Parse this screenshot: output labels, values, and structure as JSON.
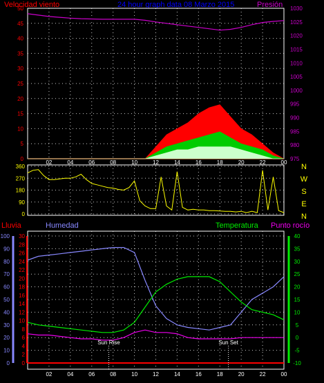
{
  "header": {
    "wind_label": "Velocidad viento",
    "title": "24 hour graph data  08 Marzo 2015",
    "pressure_label": "Presión",
    "colors": {
      "wind": "#ff0000",
      "title": "#0000ff",
      "pressure": "#cc00cc"
    }
  },
  "time_ticks": [
    "02",
    "04",
    "06",
    "08",
    "10",
    "12",
    "14",
    "16",
    "18",
    "20",
    "22",
    "00"
  ],
  "chart_data": [
    {
      "type": "area",
      "ylim_left": [
        0,
        50
      ],
      "ylim_right": [
        975,
        1030
      ],
      "yticks_left": [
        "0",
        "5",
        "10",
        "15",
        "20",
        "25",
        "30",
        "35",
        "40",
        "45",
        "50"
      ],
      "yticks_right": [
        "975",
        "980",
        "985",
        "990",
        "995",
        "1000",
        "1005",
        "1010",
        "1015",
        "1020",
        "1025",
        "1030"
      ],
      "x": [
        0,
        1,
        2,
        3,
        4,
        5,
        6,
        7,
        8,
        9,
        10,
        11,
        12,
        13,
        14,
        15,
        16,
        17,
        18,
        19,
        20,
        21,
        22,
        23,
        24
      ],
      "series": [
        {
          "name": "Presión",
          "color": "#cc00cc",
          "values": [
            1028,
            1027.5,
            1027,
            1026.7,
            1026.4,
            1026.2,
            1026.1,
            1026,
            1026,
            1026,
            1026,
            1025.6,
            1025,
            1024.5,
            1024,
            1023.5,
            1023,
            1022.5,
            1022,
            1022.3,
            1023,
            1024,
            1024.8,
            1025.2,
            1025.5
          ]
        },
        {
          "name": "wind_gust",
          "color": "#ff0000",
          "values": [
            0,
            0,
            0,
            0,
            0,
            0,
            0,
            0,
            0,
            0,
            0,
            0,
            4,
            8,
            10,
            12,
            15,
            17,
            18,
            14,
            10,
            8,
            5,
            2,
            0
          ]
        },
        {
          "name": "wind_avg",
          "color": "#00cc00",
          "values": [
            0,
            0,
            0,
            0,
            0,
            0,
            0,
            0,
            0,
            0,
            0,
            0,
            2,
            4,
            5,
            6,
            7,
            8,
            9,
            7,
            5,
            4,
            3,
            1,
            0
          ]
        },
        {
          "name": "wind_min",
          "color": "#ccffcc",
          "values": [
            0,
            0,
            0,
            0,
            0,
            0,
            0,
            0,
            0,
            0,
            0,
            0,
            1,
            2,
            3,
            3,
            4,
            4,
            4,
            4,
            3,
            2,
            1,
            0,
            0
          ]
        }
      ]
    },
    {
      "type": "line",
      "ylim": [
        0,
        360
      ],
      "yticks": [
        "0",
        "90",
        "180",
        "270",
        "360"
      ],
      "compass": [
        "N",
        "W",
        "S",
        "E",
        "N"
      ],
      "x": [
        0,
        0.5,
        1,
        1.5,
        2,
        2.5,
        3,
        3.5,
        4,
        4.5,
        5,
        5.5,
        6,
        6.5,
        7,
        7.5,
        8,
        8.5,
        9,
        9.5,
        10,
        10.5,
        11,
        11.5,
        12,
        12.5,
        13,
        13.5,
        14,
        14.5,
        15,
        15.5,
        16,
        16.5,
        17,
        17.5,
        18,
        18.5,
        19,
        19.5,
        20,
        20.5,
        21,
        21.5,
        22,
        22.5,
        23,
        23.5,
        24
      ],
      "series": [
        {
          "name": "direction",
          "color": "#ffff00",
          "values": [
            310,
            330,
            335,
            290,
            260,
            260,
            265,
            270,
            270,
            280,
            300,
            260,
            230,
            220,
            210,
            200,
            195,
            185,
            180,
            200,
            250,
            100,
            60,
            40,
            40,
            280,
            60,
            30,
            320,
            50,
            30,
            35,
            30,
            30,
            25,
            25,
            22,
            20,
            20,
            15,
            20,
            10,
            20,
            10,
            330,
            30,
            280,
            25,
            10
          ]
        }
      ]
    },
    {
      "type": "line",
      "ylim_humidity": [
        0,
        100
      ],
      "ylim_rain": [
        0,
        30
      ],
      "ylim_temp": [
        -10,
        40
      ],
      "yticks_humidity": [
        "0",
        "10",
        "20",
        "30",
        "40",
        "50",
        "60",
        "70",
        "80",
        "90",
        "100"
      ],
      "yticks_rain": [
        "0",
        "2",
        "4",
        "6",
        "8",
        "10",
        "12",
        "14",
        "16",
        "18",
        "20",
        "22",
        "24",
        "26",
        "28",
        "30"
      ],
      "yticks_temp": [
        "-10",
        "-5",
        "0",
        "5",
        "10",
        "15",
        "20",
        "25",
        "30",
        "35",
        "40"
      ],
      "labels": {
        "rain": "Lluvia",
        "humidity": "Humedad",
        "temperature": "Temperatura",
        "dewpoint": "Punto rocío"
      },
      "annotations": [
        {
          "text": "Sun Rise",
          "x": 7.6
        },
        {
          "text": "Sun Set",
          "x": 18.8
        }
      ],
      "x": [
        0,
        1,
        2,
        3,
        4,
        5,
        6,
        7,
        8,
        9,
        10,
        11,
        12,
        13,
        14,
        15,
        16,
        17,
        18,
        19,
        20,
        21,
        22,
        23,
        24
      ],
      "series": [
        {
          "name": "Humedad",
          "color": "#8888ff",
          "values": [
            81,
            84,
            85,
            86,
            87,
            88,
            89,
            90,
            91,
            91,
            87,
            65,
            45,
            35,
            30,
            28,
            27,
            26,
            28,
            30,
            40,
            50,
            55,
            60,
            68
          ]
        },
        {
          "name": "Temperatura",
          "color": "#00ee00",
          "values": [
            6,
            5,
            4.5,
            4,
            3.5,
            3,
            2.5,
            2,
            2,
            3,
            6,
            12,
            18,
            21,
            23,
            24,
            24,
            24,
            22,
            18,
            14,
            11,
            10,
            9,
            7
          ]
        },
        {
          "name": "Punto rocío",
          "color": "#ee00ee",
          "values": [
            1.5,
            1,
            1,
            0.5,
            0,
            -0.5,
            -0.5,
            -1,
            -1,
            0,
            2,
            3,
            2,
            2,
            1.5,
            0,
            -0.5,
            -0.5,
            -0.5,
            -0.5,
            0,
            0,
            0,
            0,
            0
          ]
        },
        {
          "name": "Lluvia",
          "color": "#ff0000",
          "values": [
            0,
            0,
            0,
            0,
            0,
            0,
            0,
            0,
            0,
            0,
            0,
            0,
            0,
            0,
            0,
            0,
            0,
            0,
            0,
            0,
            0,
            0,
            0,
            0,
            0
          ]
        }
      ]
    }
  ]
}
